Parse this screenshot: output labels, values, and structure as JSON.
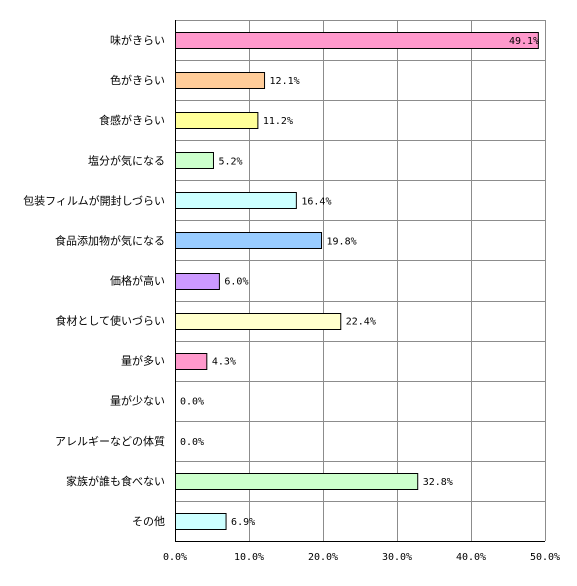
{
  "chart_data": {
    "type": "bar",
    "orientation": "horizontal",
    "title": "",
    "xlabel": "",
    "ylabel": "",
    "xlim": [
      0,
      50
    ],
    "x_ticks": [
      0,
      10,
      20,
      30,
      40,
      50
    ],
    "x_tick_labels": [
      "0.0%",
      "10.0%",
      "20.0%",
      "30.0%",
      "40.0%",
      "50.0%"
    ],
    "grid": true,
    "legend": "none",
    "categories": [
      "味がきらい",
      "色がきらい",
      "食感がきらい",
      "塩分が気になる",
      "包装フィルムが開封しづらい",
      "食品添加物が気になる",
      "価格が高い",
      "食材として使いづらい",
      "量が多い",
      "量が少ない",
      "アレルギーなどの体質",
      "家族が誰も食べない",
      "その他"
    ],
    "values": [
      49.1,
      12.1,
      11.2,
      5.2,
      16.4,
      19.8,
      6.0,
      22.4,
      4.3,
      0.0,
      0.0,
      32.8,
      6.9
    ],
    "value_labels": [
      "49.1%",
      "12.1%",
      "11.2%",
      "5.2%",
      "16.4%",
      "19.8%",
      "6.0%",
      "22.4%",
      "4.3%",
      "0.0%",
      "0.0%",
      "32.8%",
      "6.9%"
    ],
    "colors": [
      "#ff99cc",
      "#ffcc99",
      "#ffff99",
      "#ccffcc",
      "#ccffff",
      "#99ccff",
      "#cc99ff",
      "#ffffcc",
      "#ff99cc",
      "#ffcc99",
      "#ffff99",
      "#ccffcc",
      "#ccffff"
    ]
  }
}
